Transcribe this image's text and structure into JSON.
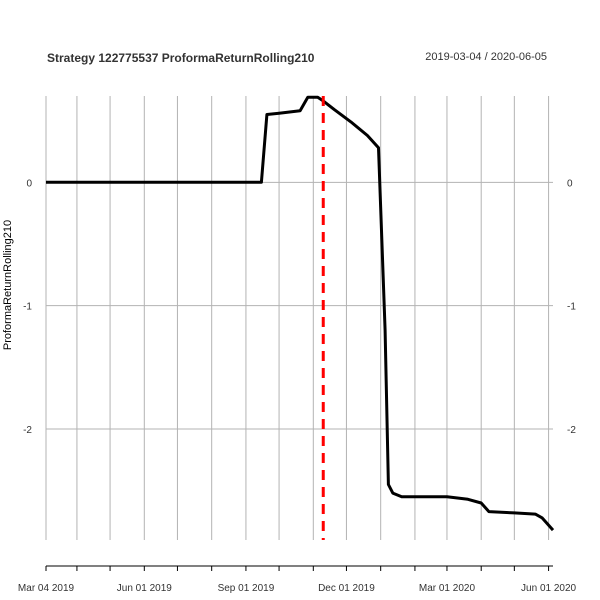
{
  "chart_data": {
    "type": "line",
    "title": "Strategy 122775537 ProformaReturnRolling210",
    "date_range": "2019-03-04 / 2020-06-05",
    "ylabel": "ProformaReturnRolling210",
    "xlim": [
      "2019-03-04",
      "2020-06-05"
    ],
    "ylim": [
      -2.9,
      0.7
    ],
    "x_ticks": [
      {
        "date": "2019-03-04",
        "label": "Mar 04 2019"
      },
      {
        "date": "2019-06-01",
        "label": "Jun 01 2019"
      },
      {
        "date": "2019-09-01",
        "label": "Sep 01 2019"
      },
      {
        "date": "2019-12-01",
        "label": "Dec 01 2019"
      },
      {
        "date": "2020-03-01",
        "label": "Mar 01 2020"
      },
      {
        "date": "2020-06-01",
        "label": "Jun 01 2020"
      }
    ],
    "y_ticks": [
      {
        "value": 0,
        "label": "0"
      },
      {
        "value": -1,
        "label": "-1"
      },
      {
        "value": -2,
        "label": "-2"
      }
    ],
    "vertical_grid_dates": [
      "2019-03-04",
      "2019-04-01",
      "2019-05-01",
      "2019-06-01",
      "2019-07-01",
      "2019-08-01",
      "2019-09-01",
      "2019-10-01",
      "2019-11-01",
      "2019-12-01",
      "2020-01-01",
      "2020-02-01",
      "2020-03-01",
      "2020-04-01",
      "2020-05-01",
      "2020-06-01"
    ],
    "marker_line": {
      "date": "2019-11-10",
      "color": "#ff0000",
      "style": "dashed"
    },
    "series": [
      {
        "color": "#000000",
        "x": [
          "2019-03-04",
          "2019-09-15",
          "2019-09-20",
          "2019-10-01",
          "2019-10-20",
          "2019-10-27",
          "2019-11-05",
          "2019-11-10",
          "2019-11-20",
          "2019-12-05",
          "2019-12-20",
          "2019-12-30",
          "2020-01-05",
          "2020-01-08",
          "2020-01-12",
          "2020-01-20",
          "2020-02-01",
          "2020-03-01",
          "2020-03-20",
          "2020-04-01",
          "2020-04-08",
          "2020-05-01",
          "2020-05-20",
          "2020-05-26",
          "2020-06-05"
        ],
        "y": [
          0,
          0,
          0.55,
          0.56,
          0.58,
          0.69,
          0.69,
          0.66,
          0.59,
          0.49,
          0.38,
          0.28,
          -1.2,
          -2.45,
          -2.52,
          -2.55,
          -2.55,
          -2.55,
          -2.57,
          -2.6,
          -2.67,
          -2.68,
          -2.69,
          -2.72,
          -2.82
        ]
      }
    ]
  }
}
